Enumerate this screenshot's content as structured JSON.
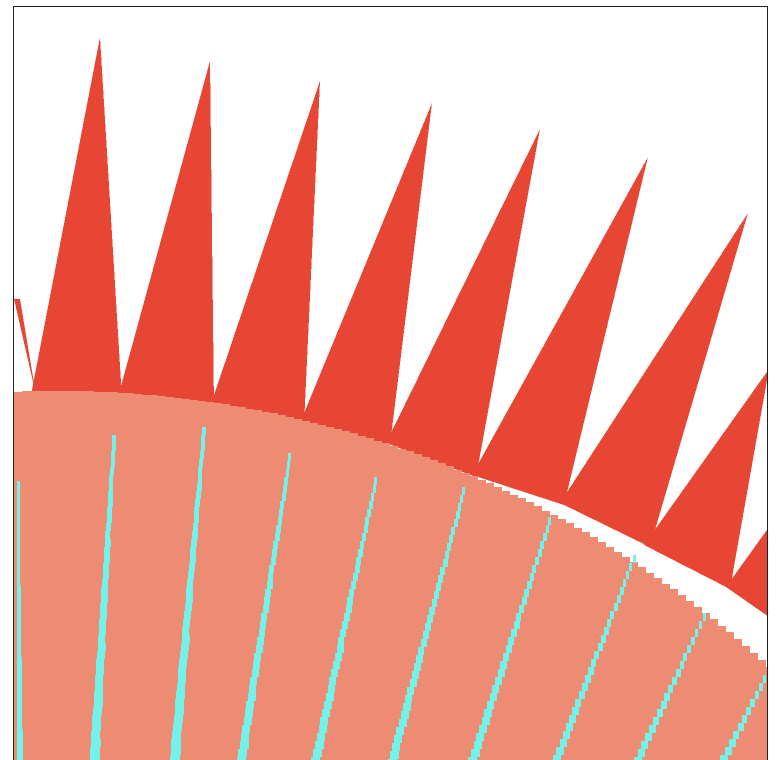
{
  "colors": {
    "background": "#ffffff",
    "spike": "#e84634",
    "disc": "#ee8b73",
    "streak": "#72f2e8",
    "border": "#222222"
  },
  "scene": {
    "description_kind": "pixelated sunburst graphic",
    "spike_count": 10,
    "streak_count": 10
  }
}
